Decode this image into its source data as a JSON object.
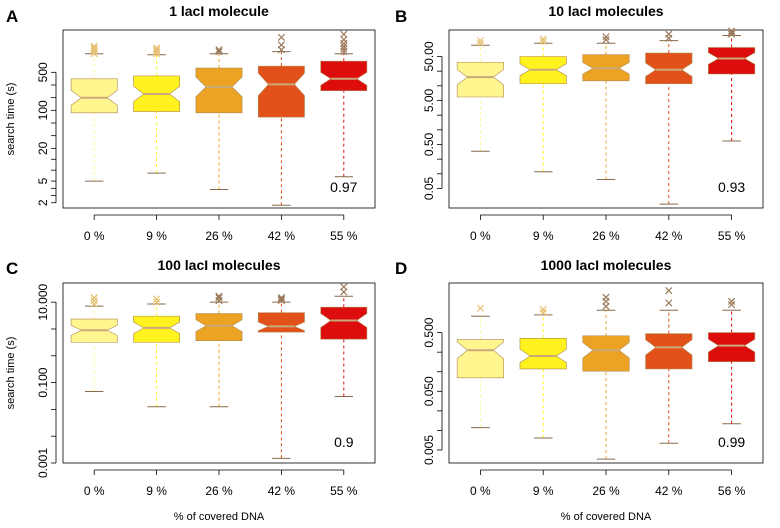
{
  "chart_data": [
    {
      "panel": "A",
      "type": "boxplot",
      "title": "1 lacI molecule",
      "ylabel": "search time (s)",
      "xlabel": "",
      "yscale": "log",
      "ylim": [
        1.6,
        3000
      ],
      "yticks": [
        2,
        5,
        20,
        100,
        500
      ],
      "ytick_labels": [
        "2",
        "5",
        "20",
        "100",
        "500"
      ],
      "categories": [
        "0  %",
        "9  %",
        "26  %",
        "42  %",
        "55  %"
      ],
      "colors": [
        "#FFF68F",
        "#FFF21E",
        "#ECA324",
        "#E2511A",
        "#DD0D0D"
      ],
      "boxes": [
        {
          "whisker_low": 5,
          "q1": 90,
          "median": 170,
          "q3": 380,
          "whisker_high": 1100,
          "outliers": [
            1100,
            1200,
            1300,
            1400,
            1500
          ]
        },
        {
          "whisker_low": 7,
          "q1": 95,
          "median": 200,
          "q3": 430,
          "whisker_high": 1050,
          "outliers": [
            1100,
            1200,
            1300,
            1400
          ]
        },
        {
          "whisker_low": 3.5,
          "q1": 90,
          "median": 270,
          "q3": 600,
          "whisker_high": 1100,
          "outliers": [
            1200,
            1300
          ]
        },
        {
          "whisker_low": 1.8,
          "q1": 75,
          "median": 300,
          "q3": 650,
          "whisker_high": 1200,
          "outliers": [
            1300,
            1600,
            2200
          ]
        },
        {
          "whisker_low": 6,
          "q1": 230,
          "median": 380,
          "q3": 800,
          "whisker_high": 1100,
          "outliers": [
            1200,
            1350,
            1500,
            1700,
            2000,
            2500
          ]
        }
      ],
      "annotation": "0.97"
    },
    {
      "panel": "B",
      "type": "boxplot",
      "title": "10 lacI molecules",
      "ylabel": "",
      "xlabel": "",
      "yscale": "log",
      "ylim": [
        0.018,
        200
      ],
      "yticks": [
        0.05,
        0.5,
        5,
        50
      ],
      "ytick_labels": [
        "0.05",
        "0.50",
        "5.00",
        "50.00"
      ],
      "categories": [
        "0  %",
        "9  %",
        "26  %",
        "42  %",
        "55  %"
      ],
      "colors": [
        "#FFF68F",
        "#FFF21E",
        "#ECA324",
        "#E2511A",
        "#DD0D0D"
      ],
      "boxes": [
        {
          "whisker_low": 0.35,
          "q1": 6,
          "median": 17,
          "q3": 37,
          "whisker_high": 90,
          "outliers": [
            100,
            115
          ]
        },
        {
          "whisker_low": 0.12,
          "q1": 12,
          "median": 25,
          "q3": 50,
          "whisker_high": 100,
          "outliers": [
            110,
            125
          ]
        },
        {
          "whisker_low": 0.08,
          "q1": 14,
          "median": 27,
          "q3": 55,
          "whisker_high": 100,
          "outliers": [
            120,
            140
          ]
        },
        {
          "whisker_low": 0.022,
          "q1": 12,
          "median": 25,
          "q3": 60,
          "whisker_high": 115,
          "outliers": [
            130,
            160
          ]
        },
        {
          "whisker_low": 0.6,
          "q1": 20,
          "median": 45,
          "q3": 80,
          "whisker_high": 150,
          "outliers": [
            160,
            175,
            190
          ]
        }
      ],
      "annotation": "0.93"
    },
    {
      "panel": "C",
      "type": "boxplot",
      "title": "100 lacI molecules",
      "ylabel": "search time (s)",
      "xlabel": "% of covered DNA",
      "yscale": "log",
      "ylim": [
        0.001,
        30
      ],
      "yticks": [
        0.001,
        0.1,
        10
      ],
      "ytick_labels": [
        "0.001",
        "0.100",
        "10.000"
      ],
      "categories": [
        "0  %",
        "9  %",
        "26  %",
        "42  %",
        "55  %"
      ],
      "colors": [
        "#FFF68F",
        "#FFF21E",
        "#ECA324",
        "#E2511A",
        "#DD0D0D"
      ],
      "boxes": [
        {
          "whisker_low": 0.06,
          "q1": 1.0,
          "median": 2.0,
          "q3": 3.8,
          "whisker_high": 8,
          "outliers": [
            9,
            11,
            13
          ]
        },
        {
          "whisker_low": 0.025,
          "q1": 1.0,
          "median": 2.3,
          "q3": 4.5,
          "whisker_high": 9,
          "outliers": [
            10,
            12
          ]
        },
        {
          "whisker_low": 0.025,
          "q1": 1.1,
          "median": 2.6,
          "q3": 5.2,
          "whisker_high": 10,
          "outliers": [
            11,
            13,
            14
          ]
        },
        {
          "whisker_low": 0.0013,
          "q1": 1.8,
          "median": 2.5,
          "q3": 5.5,
          "whisker_high": 10,
          "outliers": [
            11,
            12,
            13
          ]
        },
        {
          "whisker_low": 0.045,
          "q1": 1.2,
          "median": 3.5,
          "q3": 7.5,
          "whisker_high": 14,
          "outliers": [
            18,
            24
          ]
        }
      ],
      "annotation": "0.9"
    },
    {
      "panel": "D",
      "type": "boxplot",
      "title": "1000 lacI molecules",
      "ylabel": "",
      "xlabel": "% of covered DNA",
      "yscale": "log",
      "ylim": [
        0.003,
        3.5
      ],
      "yticks": [
        0.005,
        0.05,
        0.5
      ],
      "ytick_labels": [
        "0.005",
        "0.050",
        "0.500"
      ],
      "categories": [
        "0  %",
        "9  %",
        "26  %",
        "42  %",
        "56  %"
      ],
      "colors": [
        "#FFF68F",
        "#FFF21E",
        "#ECA324",
        "#E2511A",
        "#DD0D0D"
      ],
      "boxes": [
        {
          "whisker_low": 0.012,
          "q1": 0.085,
          "median": 0.25,
          "q3": 0.38,
          "whisker_high": 0.95,
          "outliers": [
            1.3
          ]
        },
        {
          "whisker_low": 0.008,
          "q1": 0.12,
          "median": 0.2,
          "q3": 0.4,
          "whisker_high": 1.0,
          "outliers": [
            1.1,
            1.25
          ]
        },
        {
          "whisker_low": 0.0035,
          "q1": 0.11,
          "median": 0.25,
          "q3": 0.44,
          "whisker_high": 1.2,
          "outliers": [
            1.4,
            1.7,
            2.0
          ]
        },
        {
          "whisker_low": 0.0065,
          "q1": 0.12,
          "median": 0.28,
          "q3": 0.48,
          "whisker_high": 1.2,
          "outliers": [
            1.6,
            2.6
          ]
        },
        {
          "whisker_low": 0.014,
          "q1": 0.16,
          "median": 0.3,
          "q3": 0.5,
          "whisker_high": 1.2,
          "outliers": [
            1.5,
            1.7
          ]
        }
      ],
      "annotation": "0.99"
    }
  ]
}
